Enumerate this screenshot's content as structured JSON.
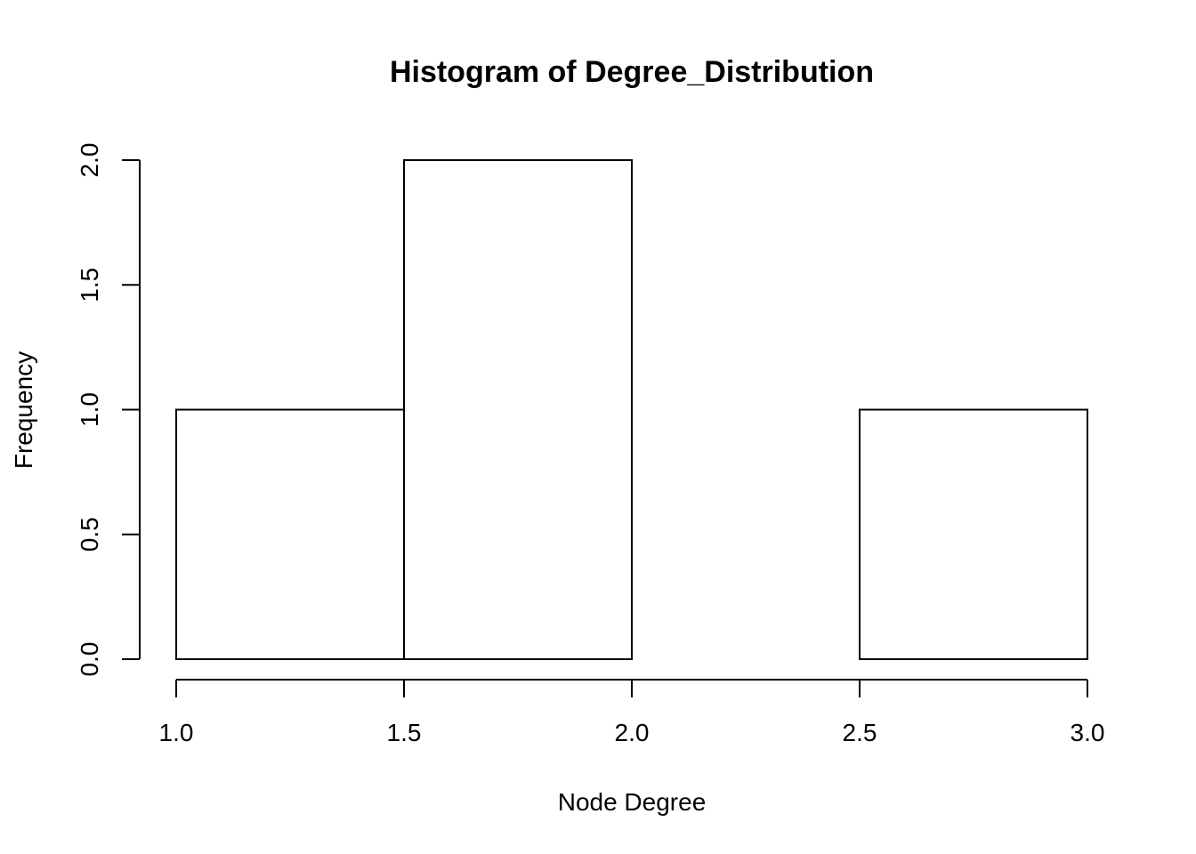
{
  "chart_data": {
    "type": "bar",
    "title": "Histogram of Degree_Distribution",
    "xlabel": "Node Degree",
    "ylabel": "Frequency",
    "bins": [
      {
        "x0": 1.0,
        "x1": 1.5,
        "count": 1
      },
      {
        "x0": 1.5,
        "x1": 2.0,
        "count": 2
      },
      {
        "x0": 2.0,
        "x1": 2.5,
        "count": 0
      },
      {
        "x0": 2.5,
        "x1": 3.0,
        "count": 1
      }
    ],
    "xlim": [
      1.0,
      3.0
    ],
    "ylim": [
      0,
      2
    ],
    "x_ticks": [
      "1.0",
      "1.5",
      "2.0",
      "2.5",
      "3.0"
    ],
    "y_ticks": [
      "0.0",
      "0.5",
      "1.0",
      "1.5",
      "2.0"
    ],
    "grid": false,
    "legend": false
  }
}
